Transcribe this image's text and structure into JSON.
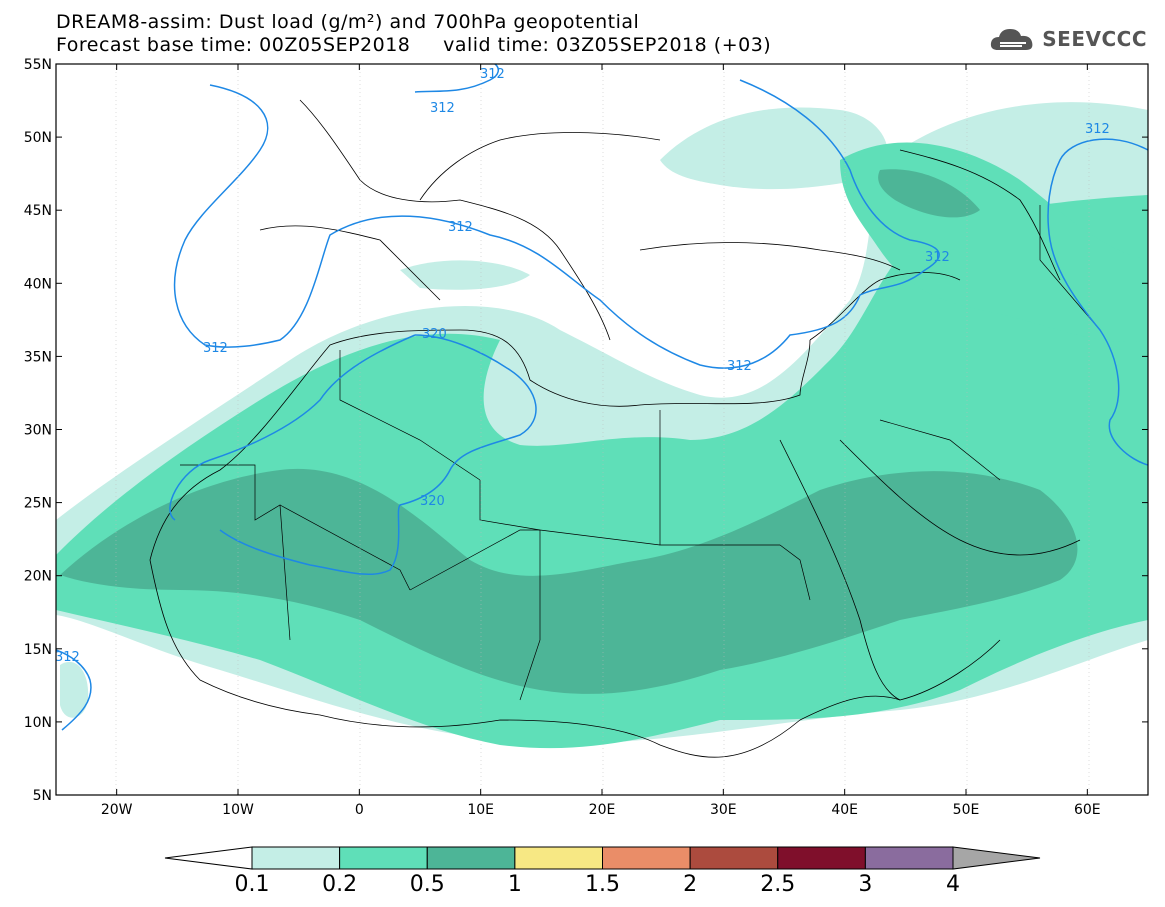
{
  "title": {
    "line1": "DREAM8-assim: Dust load (g/m²) and 700hPa geopotential",
    "line2": "Forecast base time: 00Z05SEP2018     valid time: 03Z05SEP2018 (+03)"
  },
  "brand": {
    "name": "SEEVCCC",
    "icon": "cloud-logo-icon"
  },
  "map": {
    "lon_range": [
      -25,
      65
    ],
    "lat_range": [
      5,
      55
    ],
    "lon_ticks": [
      "20W",
      "10W",
      "0",
      "10E",
      "20E",
      "30E",
      "40E",
      "50E",
      "60E"
    ],
    "lat_ticks": [
      "55N",
      "50N",
      "45N",
      "40N",
      "35N",
      "30N",
      "25N",
      "20N",
      "15N",
      "10N",
      "5N"
    ],
    "contour_labels": [
      "312",
      "312",
      "312",
      "312",
      "312",
      "312",
      "312",
      "320",
      "320",
      "312"
    ]
  },
  "colorbar": {
    "labels": [
      "0.1",
      "0.2",
      "0.5",
      "1",
      "1.5",
      "2",
      "2.5",
      "3",
      "4"
    ],
    "colors": [
      "#ffffff",
      "#c4eee6",
      "#5fdfb8",
      "#4db597",
      "#f7e884",
      "#ea8d68",
      "#ac4b3e",
      "#7f0f2b",
      "#8a6c9e",
      "#a6a6a6"
    ]
  }
}
